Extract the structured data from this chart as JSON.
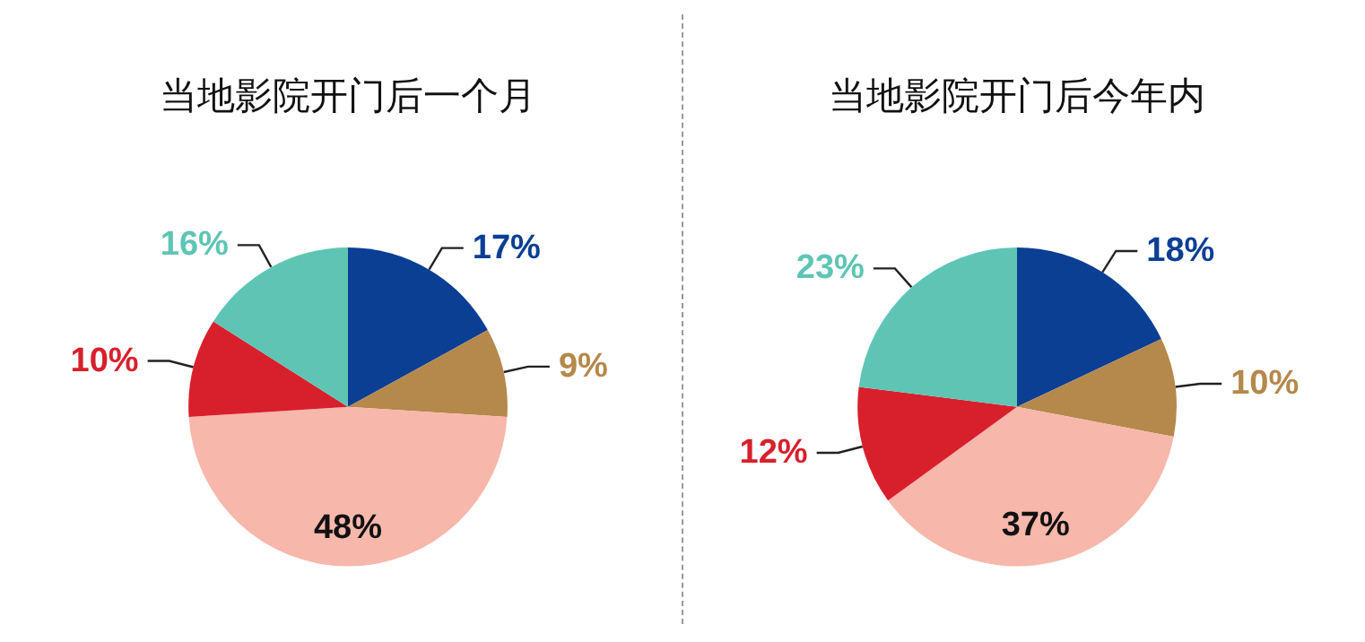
{
  "chart_data": [
    {
      "type": "pie",
      "title": "当地影院开门后一个月",
      "categories": [
        null,
        null,
        null,
        null,
        null
      ],
      "values": [
        17,
        9,
        48,
        10,
        16
      ],
      "value_labels": [
        "17%",
        "9%",
        "48%",
        "10%",
        "16%"
      ],
      "colors": [
        "#0b3f94",
        "#b5884b",
        "#f7b7ab",
        "#d8202c",
        "#5ec5b4"
      ]
    },
    {
      "type": "pie",
      "title": "当地影院开门后今年内",
      "categories": [
        null,
        null,
        null,
        null,
        null
      ],
      "values": [
        18,
        10,
        37,
        12,
        23
      ],
      "value_labels": [
        "18%",
        "10%",
        "37%",
        "12%",
        "23%"
      ],
      "colors": [
        "#0b3f94",
        "#b5884b",
        "#f7b7ab",
        "#d8202c",
        "#5ec5b4"
      ]
    }
  ]
}
